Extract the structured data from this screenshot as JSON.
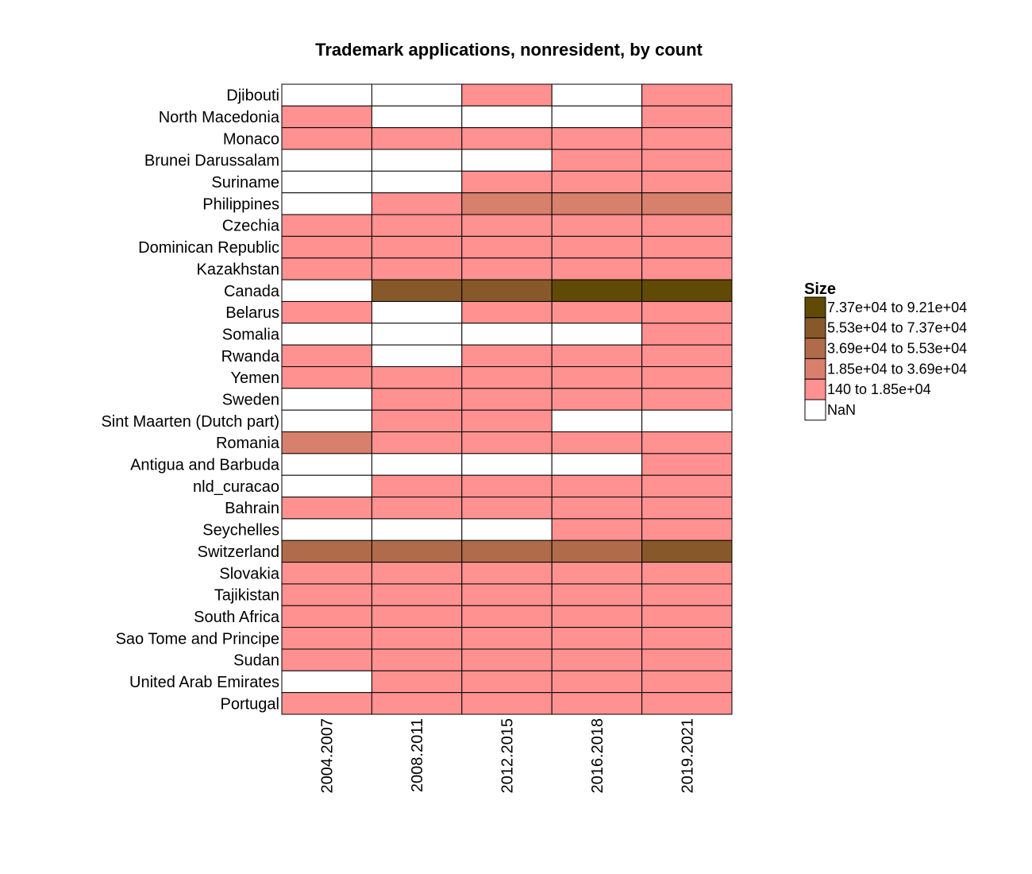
{
  "chart_data": {
    "type": "heatmap",
    "title": "Trademark applications, nonresident, by count",
    "xlabel": "",
    "ylabel": "",
    "columns": [
      "2004.2007",
      "2008.2011",
      "2012.2015",
      "2016.2018",
      "2019.2021"
    ],
    "rows": [
      "Djibouti",
      "North Macedonia",
      "Monaco",
      "Brunei Darussalam",
      "Suriname",
      "Philippines",
      "Czechia",
      "Dominican Republic",
      "Kazakhstan",
      "Canada",
      "Belarus",
      "Somalia",
      "Rwanda",
      "Yemen",
      "Sweden",
      "Sint Maarten (Dutch part)",
      "Romania",
      "Antigua and Barbuda",
      "nld_curacao",
      "Bahrain",
      "Seychelles",
      "Switzerland",
      "Slovakia",
      "Tajikistan",
      "South Africa",
      "Sao Tome and Principe",
      "Sudan",
      "United Arab Emirates",
      "Portugal"
    ],
    "bins": [
      "NaN",
      "140 to 1.85e+04",
      "1.85e+04 to 3.69e+04",
      "3.69e+04 to 5.53e+04",
      "5.53e+04 to 7.37e+04",
      "7.37e+04 to 9.21e+04"
    ],
    "bin_colors": [
      "#ffffff",
      "#ff9191",
      "#d7806c",
      "#b06c4a",
      "#87592a",
      "#614a06"
    ],
    "cells": [
      [
        0,
        0,
        1,
        0,
        1
      ],
      [
        1,
        0,
        0,
        0,
        1
      ],
      [
        1,
        1,
        1,
        1,
        1
      ],
      [
        0,
        0,
        0,
        1,
        1
      ],
      [
        0,
        0,
        1,
        1,
        1
      ],
      [
        0,
        1,
        2,
        2,
        2
      ],
      [
        1,
        1,
        1,
        1,
        1
      ],
      [
        1,
        1,
        1,
        1,
        1
      ],
      [
        1,
        1,
        1,
        1,
        1
      ],
      [
        0,
        4,
        4,
        5,
        5
      ],
      [
        1,
        0,
        1,
        1,
        1
      ],
      [
        0,
        0,
        0,
        0,
        1
      ],
      [
        1,
        0,
        1,
        1,
        1
      ],
      [
        1,
        1,
        1,
        1,
        1
      ],
      [
        0,
        1,
        1,
        1,
        1
      ],
      [
        0,
        1,
        1,
        0,
        0
      ],
      [
        2,
        1,
        1,
        1,
        1
      ],
      [
        0,
        0,
        0,
        0,
        1
      ],
      [
        0,
        1,
        1,
        1,
        1
      ],
      [
        1,
        1,
        1,
        1,
        1
      ],
      [
        0,
        0,
        0,
        1,
        1
      ],
      [
        3,
        3,
        3,
        3,
        4
      ],
      [
        1,
        1,
        1,
        1,
        1
      ],
      [
        1,
        1,
        1,
        1,
        1
      ],
      [
        1,
        1,
        1,
        1,
        1
      ],
      [
        1,
        1,
        1,
        1,
        1
      ],
      [
        1,
        1,
        1,
        1,
        1
      ],
      [
        0,
        1,
        1,
        1,
        1
      ],
      [
        1,
        1,
        1,
        1,
        1
      ]
    ],
    "legend": {
      "title": "Size",
      "entries": [
        "7.37e+04 to 9.21e+04",
        "5.53e+04 to 7.37e+04",
        "3.69e+04 to 5.53e+04",
        "1.85e+04 to 3.69e+04",
        "140 to 1.85e+04",
        "NaN"
      ],
      "position": "right"
    },
    "grid": false
  }
}
